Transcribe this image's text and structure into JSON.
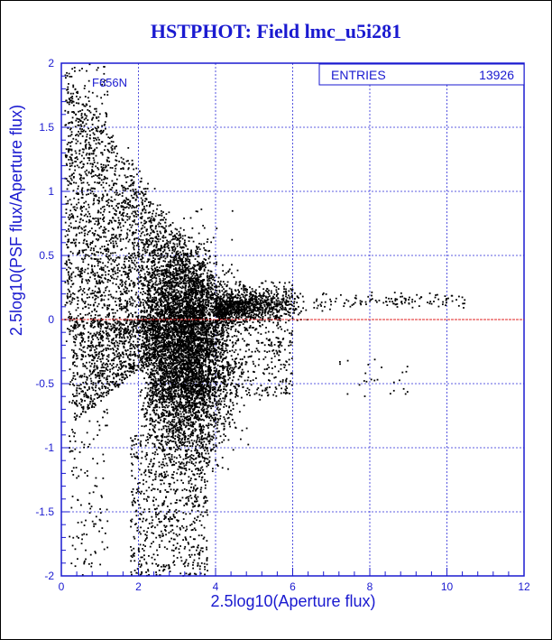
{
  "chart_data": {
    "type": "scatter",
    "title": "HSTPHOT: Field lmc_u5i281",
    "xlabel": "2.5log10(Aperture flux)",
    "ylabel": "2.5log10(PSF flux/Aperture flux)",
    "xlim": [
      0,
      12
    ],
    "ylim": [
      -2,
      2
    ],
    "xticks": [
      "0",
      "2",
      "4",
      "6",
      "8",
      "10",
      "12"
    ],
    "yticks": [
      "-2",
      "-1.5",
      "-1",
      "-0.5",
      "0",
      "0.5",
      "1",
      "1.5",
      "2"
    ],
    "grid": true,
    "reference_line": {
      "y": 0,
      "color": "#e02020"
    },
    "annotation": "F656N",
    "stats": {
      "entries_label": "ENTRIES",
      "entries_value": "13926"
    },
    "point_color": "#000000",
    "density_summary": [
      {
        "x_range": [
          0.2,
          1.2
        ],
        "y_center": 1.0,
        "y_spread": 0.6,
        "description": "sparse high streak"
      },
      {
        "x_range": [
          2.0,
          4.0
        ],
        "y_center": -0.3,
        "y_spread": 0.6,
        "description": "dense core"
      },
      {
        "x_range": [
          4.0,
          7.0
        ],
        "y_center": 0.12,
        "y_spread": 0.08,
        "description": "tail toward bright end"
      },
      {
        "x_range": [
          7.0,
          10.5
        ],
        "y_center": 0.15,
        "y_spread": 0.05,
        "description": "sparse bright tail"
      }
    ]
  }
}
